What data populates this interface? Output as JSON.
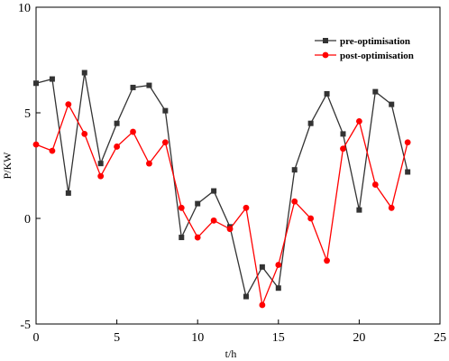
{
  "chart_data": {
    "type": "line",
    "title": "",
    "xlabel": "t/h",
    "ylabel": "P/KW",
    "xlim": [
      0,
      25
    ],
    "ylim": [
      -5,
      10
    ],
    "xticks": [
      0,
      5,
      10,
      15,
      20,
      25
    ],
    "yticks": [
      -5,
      0,
      5,
      10
    ],
    "grid": false,
    "legend_position": "top-right",
    "x": [
      0,
      1,
      2,
      3,
      4,
      5,
      6,
      7,
      8,
      9,
      10,
      11,
      12,
      13,
      14,
      15,
      16,
      17,
      18,
      19,
      20,
      21,
      22,
      23
    ],
    "series": [
      {
        "name": "pre-optimisation",
        "color": "#333333",
        "marker": "square",
        "values": [
          6.4,
          6.6,
          1.2,
          6.9,
          2.6,
          4.5,
          6.2,
          6.3,
          5.1,
          -0.9,
          0.7,
          1.3,
          -0.4,
          -3.7,
          -2.3,
          -3.3,
          2.3,
          4.5,
          5.9,
          4.0,
          0.4,
          6.0,
          5.4,
          2.2
        ]
      },
      {
        "name": "post-optimisation",
        "color": "#ff0000",
        "marker": "circle",
        "values": [
          3.5,
          3.2,
          5.4,
          4.0,
          2.0,
          3.4,
          4.1,
          2.6,
          3.6,
          0.5,
          -0.9,
          -0.1,
          -0.5,
          0.5,
          -4.1,
          -2.2,
          0.8,
          0.0,
          -2.0,
          3.3,
          4.6,
          1.6,
          0.5,
          3.6
        ]
      }
    ]
  }
}
